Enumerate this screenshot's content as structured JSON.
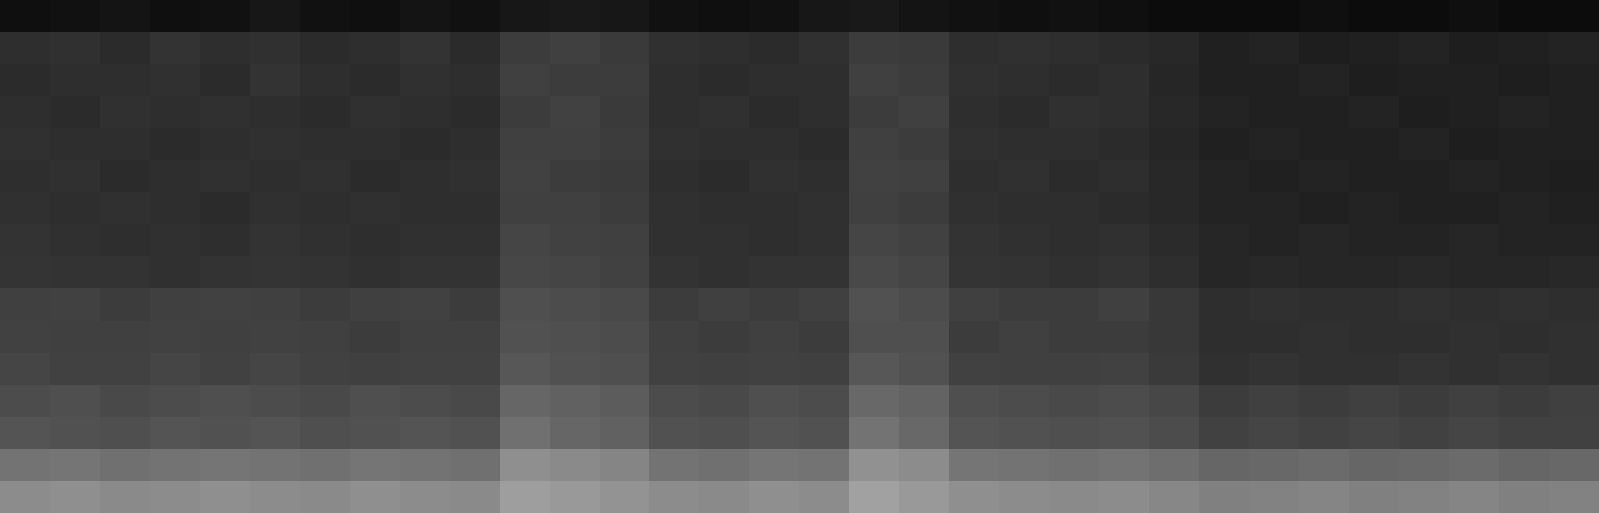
{
  "chart_data": {
    "type": "heatmap",
    "color": "gray",
    "tick_labels": false,
    "grid": false,
    "value_range": [
      0,
      100
    ],
    "cells": [
      [
        6,
        7,
        8,
        6,
        7,
        9,
        7,
        6,
        8,
        7,
        9,
        10,
        9,
        7,
        6,
        7,
        9,
        10,
        8,
        7,
        6,
        7,
        6,
        5,
        5,
        5,
        6,
        5,
        5,
        6,
        5,
        5
      ],
      [
        18,
        19,
        17,
        20,
        18,
        19,
        17,
        18,
        20,
        17,
        24,
        25,
        23,
        19,
        18,
        17,
        19,
        24,
        23,
        18,
        19,
        18,
        17,
        16,
        13,
        14,
        12,
        13,
        14,
        12,
        13,
        14
      ],
      [
        17,
        18,
        18,
        19,
        17,
        20,
        18,
        17,
        19,
        18,
        25,
        24,
        24,
        18,
        17,
        18,
        18,
        25,
        24,
        19,
        18,
        17,
        18,
        15,
        13,
        13,
        14,
        12,
        13,
        13,
        12,
        13
      ],
      [
        18,
        17,
        19,
        18,
        19,
        18,
        17,
        19,
        18,
        17,
        24,
        26,
        23,
        18,
        19,
        17,
        18,
        24,
        25,
        18,
        17,
        19,
        18,
        16,
        14,
        13,
        13,
        14,
        12,
        13,
        14,
        13
      ],
      [
        19,
        18,
        18,
        17,
        18,
        19,
        18,
        18,
        17,
        18,
        25,
        25,
        24,
        19,
        18,
        18,
        17,
        25,
        24,
        19,
        18,
        18,
        17,
        15,
        13,
        14,
        13,
        13,
        14,
        12,
        13,
        13
      ],
      [
        18,
        19,
        17,
        18,
        19,
        18,
        19,
        17,
        18,
        19,
        26,
        24,
        23,
        18,
        17,
        19,
        18,
        26,
        25,
        18,
        19,
        17,
        18,
        16,
        14,
        13,
        14,
        13,
        13,
        14,
        13,
        12
      ],
      [
        19,
        18,
        19,
        18,
        17,
        19,
        18,
        19,
        18,
        18,
        25,
        25,
        24,
        19,
        18,
        18,
        19,
        25,
        24,
        19,
        18,
        18,
        17,
        16,
        14,
        14,
        13,
        14,
        13,
        13,
        14,
        13
      ],
      [
        20,
        19,
        18,
        19,
        18,
        20,
        19,
        18,
        19,
        19,
        27,
        26,
        25,
        19,
        19,
        18,
        19,
        27,
        26,
        20,
        19,
        18,
        19,
        17,
        15,
        14,
        15,
        14,
        14,
        15,
        14,
        14
      ],
      [
        21,
        20,
        20,
        19,
        20,
        21,
        20,
        19,
        20,
        20,
        28,
        27,
        26,
        20,
        19,
        20,
        20,
        29,
        27,
        21,
        20,
        19,
        20,
        18,
        15,
        16,
        15,
        15,
        16,
        15,
        15,
        16
      ],
      [
        25,
        26,
        24,
        25,
        26,
        25,
        24,
        25,
        26,
        24,
        31,
        30,
        29,
        24,
        25,
        24,
        25,
        32,
        30,
        25,
        24,
        24,
        25,
        22,
        18,
        19,
        18,
        18,
        19,
        18,
        19,
        18
      ],
      [
        26,
        25,
        25,
        26,
        25,
        26,
        25,
        24,
        25,
        25,
        32,
        31,
        30,
        25,
        24,
        25,
        24,
        31,
        31,
        24,
        25,
        24,
        24,
        22,
        18,
        18,
        19,
        18,
        18,
        19,
        18,
        19
      ],
      [
        27,
        26,
        26,
        27,
        26,
        27,
        26,
        25,
        26,
        26,
        34,
        32,
        31,
        26,
        25,
        26,
        25,
        34,
        32,
        26,
        25,
        25,
        26,
        23,
        19,
        20,
        19,
        19,
        20,
        19,
        20,
        19
      ],
      [
        30,
        31,
        29,
        30,
        31,
        30,
        29,
        31,
        30,
        29,
        40,
        38,
        36,
        30,
        29,
        31,
        30,
        41,
        39,
        31,
        30,
        29,
        30,
        28,
        24,
        25,
        24,
        25,
        24,
        25,
        24,
        25
      ],
      [
        33,
        32,
        31,
        33,
        32,
        33,
        31,
        32,
        33,
        32,
        44,
        40,
        38,
        32,
        31,
        33,
        32,
        45,
        41,
        33,
        32,
        31,
        32,
        30,
        26,
        27,
        26,
        27,
        26,
        27,
        26,
        26
      ],
      [
        45,
        46,
        44,
        45,
        46,
        45,
        44,
        46,
        45,
        44,
        56,
        54,
        52,
        45,
        44,
        46,
        45,
        57,
        55,
        46,
        45,
        44,
        45,
        43,
        40,
        41,
        42,
        40,
        41,
        42,
        40,
        41
      ],
      [
        55,
        56,
        54,
        55,
        56,
        55,
        54,
        56,
        55,
        54,
        62,
        60,
        58,
        55,
        54,
        56,
        55,
        63,
        60,
        56,
        55,
        54,
        55,
        53,
        50,
        51,
        52,
        50,
        51,
        52,
        50,
        51
      ]
    ]
  }
}
